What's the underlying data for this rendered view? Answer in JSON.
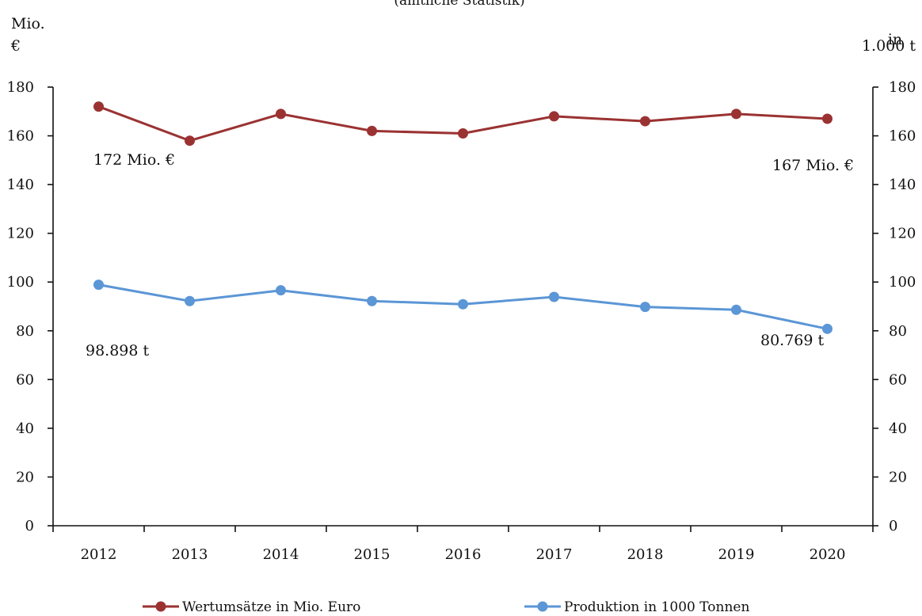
{
  "chart_data": {
    "type": "line",
    "subtitle": "(amtliche Statistik)",
    "ylabel_left": [
      "Mio.",
      "€"
    ],
    "ylabel_right": [
      "in",
      "1.000 t"
    ],
    "categories": [
      "2012",
      "2013",
      "2014",
      "2015",
      "2016",
      "2017",
      "2018",
      "2019",
      "2020"
    ],
    "ylim": [
      0,
      180
    ],
    "yticks": [
      "0",
      "20",
      "40",
      "60",
      "80",
      "100",
      "120",
      "140",
      "160",
      "180"
    ],
    "series": [
      {
        "name": "Wertumsätze in Mio. Euro",
        "color": "#9b3232",
        "values": [
          172,
          158,
          169,
          162,
          161,
          168,
          166,
          169,
          167
        ]
      },
      {
        "name": "Produktion in 1000 Tonnen",
        "color": "#5b96d6",
        "values": [
          98.9,
          92.2,
          96.6,
          92.2,
          90.9,
          93.9,
          89.8,
          88.6,
          80.8
        ]
      }
    ],
    "annotations": [
      "172 Mio. €",
      "167 Mio. €",
      "98.898 t",
      "80.769 t"
    ],
    "grid": false,
    "legend_position": "bottom"
  }
}
